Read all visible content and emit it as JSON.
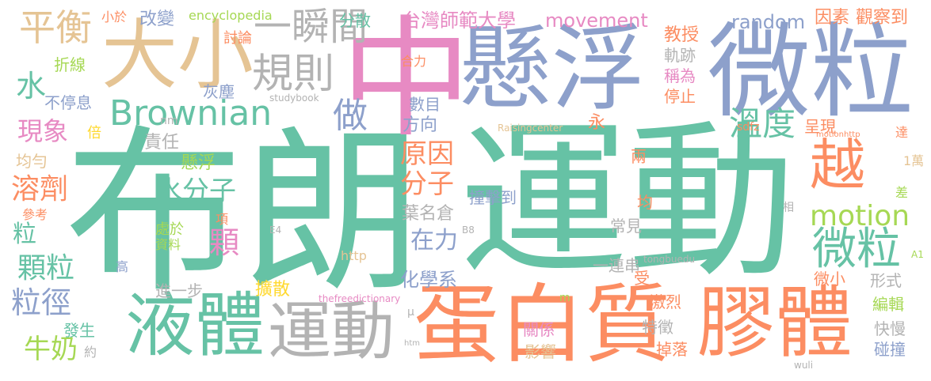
{
  "palette": {
    "green": "#66c2a5",
    "orange": "#fc8d62",
    "blue": "#8da0cb",
    "pink": "#e78ac3",
    "lime": "#a6d854",
    "yellow": "#ffd92f",
    "tan": "#e5c494",
    "gray": "#b3b3b3"
  },
  "words": {
    "bulang": "布朗",
    "yundong_big": "運動",
    "zhong": "中",
    "xuanfu_big": "懸浮",
    "weili_big": "微粒",
    "danbaizhi": "蛋白質",
    "jiaoti": "膠體",
    "yeti": "液體",
    "yundong_mid": "運動",
    "daxiao": "大小",
    "pingheng": "平衡",
    "brownian": "Brownian",
    "guize": "規則",
    "yishunjian": "一瞬間",
    "yue": "越",
    "wendu": "溫度",
    "motion": "motion",
    "weili_mid": "微粒",
    "yuanyin": "原因",
    "fenzi": "分子",
    "shuifenzi": "水分子",
    "random": "random",
    "movement": "movement",
    "shida": "台灣師範大學",
    "yinsu": "因素",
    "guanchadao": "觀察到",
    "zuo": "做",
    "fangxiang": "方向",
    "shumu": "數目",
    "zaili": "在力",
    "xianxiang": "現象",
    "rongji": "溶劑",
    "shui": "水",
    "keli": "顆粒",
    "lijing": "粒徑",
    "li": "粒",
    "ke": "顆",
    "niunai": "牛奶",
    "huaxuexi": "化學系",
    "yelianmingcang": "葉名倉",
    "jiaoshou": "教授",
    "guiji": "軌跡",
    "chengwei": "稱為",
    "tingzhi": "停止",
    "yong": "永",
    "zeren": "責任",
    "xuanfu_small": "懸浮",
    "chengxian": "呈現",
    "liang": "兩",
    "zhuangjidao": "撞擊到",
    "jun": "均",
    "changjian": "常見",
    "yilianchuan": "一連串",
    "shou": "受",
    "kuosan": "擴散",
    "jinyibu": "進一步",
    "guanxi": "關係",
    "yingxiang": "影響",
    "texing": "特徵",
    "diaoluo": "掉落",
    "jilie": "激烈",
    "weixiao": "微小",
    "xingshi": "形式",
    "bianji": "編輯",
    "kuaiman": "快慢",
    "pengzhuang": "碰撞",
    "fasheng": "發生",
    "yue_small": "約",
    "bu_tingxi": "不停息",
    "zhexian": "折線",
    "huichen": "灰塵",
    "taolun": "討論",
    "gaibian": "改變",
    "xiaoyu": "小於",
    "encyclopedia": "encyclopedia",
    "fensan": "分散",
    "heli": "合力",
    "bei": "倍",
    "junyun": "均勻",
    "cankao": "參考",
    "chuyu": "處於",
    "ziliao": "資料",
    "xiang": "項",
    "gao": "高",
    "da": "達",
    "yiwan": "1萬",
    "cha": "差",
    "xiang_xiangdui": "相",
    "nm": "nm",
    "studybook": "studybook",
    "raisingcenter": "Raisingcenter",
    "sdfz": "sdfz",
    "motionhttp": "motionhttp",
    "http": "http",
    "b8": "B8",
    "e4": "E4",
    "tongbuedu": "tongbuedu",
    "a1": "A1",
    "thefreedictionary": "thefreedictionary",
    "m": "m",
    "mu": "μ",
    "htm": "htm",
    "wuli": "wuli"
  }
}
